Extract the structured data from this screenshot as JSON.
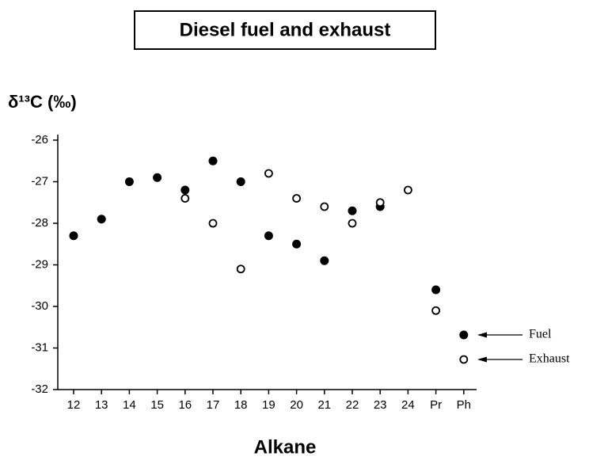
{
  "chart_data": {
    "type": "scatter",
    "title": "Diesel fuel and exhaust",
    "y_label": "δ¹³C (‰)",
    "x_label": "Alkane",
    "categories": [
      "12",
      "13",
      "14",
      "15",
      "16",
      "17",
      "18",
      "19",
      "20",
      "21",
      "22",
      "23",
      "24",
      "Pr",
      "Ph"
    ],
    "series": [
      {
        "name": "Fuel",
        "color": "#000000",
        "marker": "filled",
        "values": [
          -28.3,
          -27.9,
          -27.0,
          -26.9,
          -27.2,
          -26.5,
          -27.0,
          -28.3,
          -28.5,
          -28.9,
          -27.7,
          -27.6,
          null,
          -29.6,
          null
        ]
      },
      {
        "name": "Exhaust",
        "color": "#000000",
        "marker": "open",
        "values": [
          null,
          null,
          null,
          null,
          -27.4,
          -28.0,
          -29.1,
          -26.8,
          -27.4,
          -27.6,
          -28.0,
          -27.5,
          -27.2,
          -30.1,
          null
        ]
      }
    ],
    "ylim": [
      -32,
      -26
    ],
    "yticks": [
      -32,
      -31,
      -30,
      -29,
      -28,
      -27,
      -26
    ],
    "legend": "lower right"
  }
}
